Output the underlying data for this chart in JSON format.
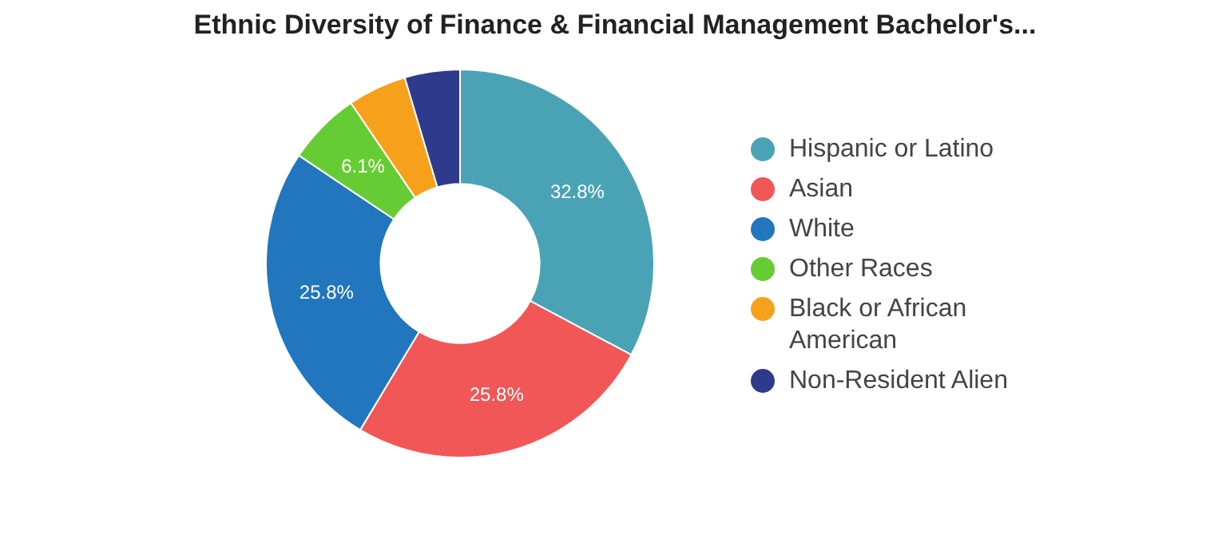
{
  "chart_data": {
    "type": "donut",
    "title": "Ethnic Diversity of Finance & Financial Management Bachelor's...",
    "categories": [
      "Hispanic or Latino",
      "Asian",
      "White",
      "Other Races",
      "Black or African American",
      "Non-Resident Alien"
    ],
    "values": [
      32.8,
      25.8,
      25.8,
      6.1,
      4.9,
      4.6
    ],
    "colors": [
      "#4aa3b5",
      "#f25757",
      "#2176bd",
      "#66cc33",
      "#f7a01c",
      "#2e3a8c"
    ],
    "value_labels": [
      "32.8%",
      "25.8%",
      "25.8%",
      "6.1%",
      null,
      null
    ],
    "legend": "right"
  }
}
